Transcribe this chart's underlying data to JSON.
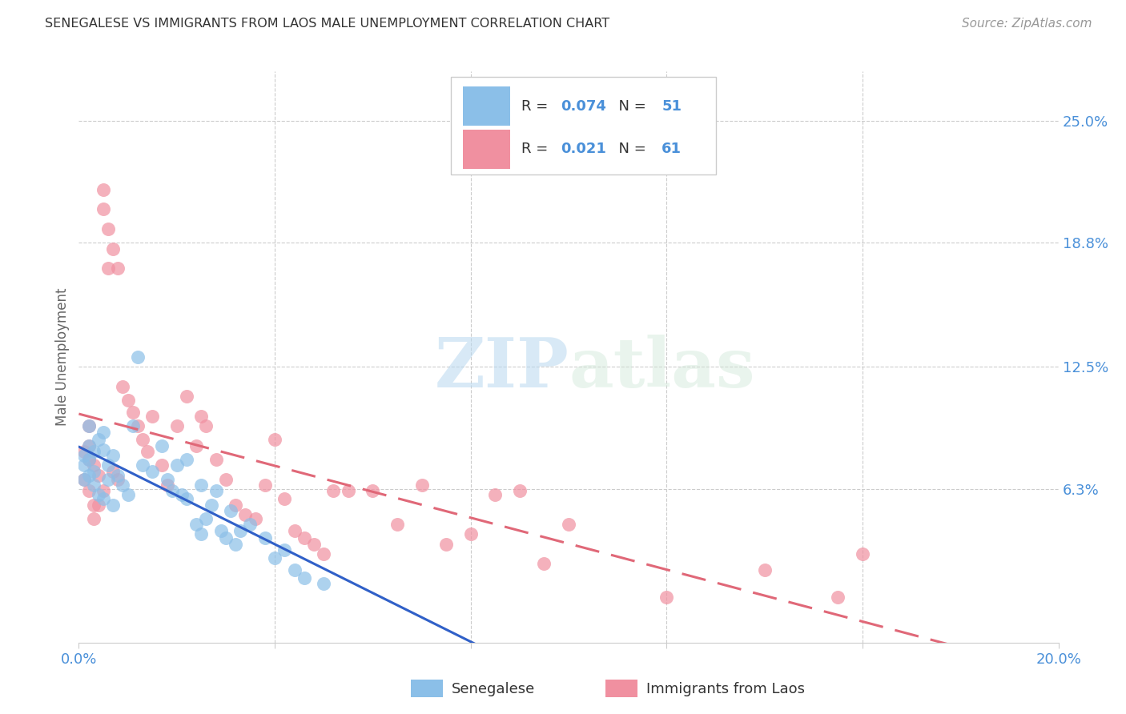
{
  "title": "SENEGALESE VS IMMIGRANTS FROM LAOS MALE UNEMPLOYMENT CORRELATION CHART",
  "source": "Source: ZipAtlas.com",
  "ylabel": "Male Unemployment",
  "xlim": [
    0.0,
    0.2
  ],
  "ylim": [
    -0.015,
    0.275
  ],
  "ytick_positions": [
    0.063,
    0.125,
    0.188,
    0.25
  ],
  "ytick_labels": [
    "6.3%",
    "12.5%",
    "18.8%",
    "25.0%"
  ],
  "senegalese_color": "#8bbfe8",
  "laos_color": "#f090a0",
  "senegalese_line_color": "#3060c8",
  "laos_line_color": "#e06878",
  "watermark_zip": "ZIP",
  "watermark_atlas": "atlas",
  "background_color": "#ffffff",
  "legend_blue_color": "#8bbfe8",
  "legend_pink_color": "#f090a0",
  "R_sen": "0.074",
  "N_sen": "51",
  "R_laos": "0.021",
  "N_laos": "61",
  "label_color": "#4a90d9",
  "grid_color": "#cccccc",
  "title_color": "#333333",
  "source_color": "#999999",
  "ylabel_color": "#666666",
  "sen_x": [
    0.001,
    0.001,
    0.001,
    0.002,
    0.002,
    0.002,
    0.002,
    0.003,
    0.003,
    0.003,
    0.004,
    0.004,
    0.005,
    0.005,
    0.005,
    0.006,
    0.006,
    0.007,
    0.007,
    0.008,
    0.009,
    0.01,
    0.011,
    0.012,
    0.013,
    0.015,
    0.017,
    0.018,
    0.019,
    0.02,
    0.021,
    0.022,
    0.022,
    0.024,
    0.025,
    0.025,
    0.026,
    0.027,
    0.028,
    0.029,
    0.03,
    0.031,
    0.032,
    0.033,
    0.035,
    0.038,
    0.04,
    0.042,
    0.044,
    0.046,
    0.05
  ],
  "sen_y": [
    0.08,
    0.075,
    0.068,
    0.095,
    0.085,
    0.078,
    0.07,
    0.082,
    0.072,
    0.065,
    0.088,
    0.06,
    0.092,
    0.083,
    0.058,
    0.075,
    0.068,
    0.08,
    0.055,
    0.07,
    0.065,
    0.06,
    0.095,
    0.13,
    0.075,
    0.072,
    0.085,
    0.068,
    0.062,
    0.075,
    0.06,
    0.078,
    0.058,
    0.045,
    0.065,
    0.04,
    0.048,
    0.055,
    0.062,
    0.042,
    0.038,
    0.052,
    0.035,
    0.042,
    0.045,
    0.038,
    0.028,
    0.032,
    0.022,
    0.018,
    0.015
  ],
  "laos_x": [
    0.001,
    0.001,
    0.002,
    0.002,
    0.002,
    0.002,
    0.003,
    0.003,
    0.003,
    0.004,
    0.004,
    0.005,
    0.005,
    0.005,
    0.006,
    0.006,
    0.007,
    0.007,
    0.008,
    0.008,
    0.009,
    0.01,
    0.011,
    0.012,
    0.013,
    0.014,
    0.015,
    0.017,
    0.018,
    0.02,
    0.022,
    0.024,
    0.025,
    0.026,
    0.028,
    0.03,
    0.032,
    0.034,
    0.036,
    0.038,
    0.04,
    0.042,
    0.044,
    0.046,
    0.048,
    0.05,
    0.052,
    0.055,
    0.06,
    0.065,
    0.07,
    0.075,
    0.08,
    0.085,
    0.09,
    0.095,
    0.1,
    0.12,
    0.14,
    0.155,
    0.16
  ],
  "laos_y": [
    0.082,
    0.068,
    0.095,
    0.085,
    0.078,
    0.062,
    0.075,
    0.055,
    0.048,
    0.07,
    0.055,
    0.215,
    0.205,
    0.062,
    0.195,
    0.175,
    0.185,
    0.072,
    0.175,
    0.068,
    0.115,
    0.108,
    0.102,
    0.095,
    0.088,
    0.082,
    0.1,
    0.075,
    0.065,
    0.095,
    0.11,
    0.085,
    0.1,
    0.095,
    0.078,
    0.068,
    0.055,
    0.05,
    0.048,
    0.065,
    0.088,
    0.058,
    0.042,
    0.038,
    0.035,
    0.03,
    0.062,
    0.062,
    0.062,
    0.045,
    0.065,
    0.035,
    0.04,
    0.06,
    0.062,
    0.025,
    0.045,
    0.008,
    0.022,
    0.008,
    0.03
  ]
}
